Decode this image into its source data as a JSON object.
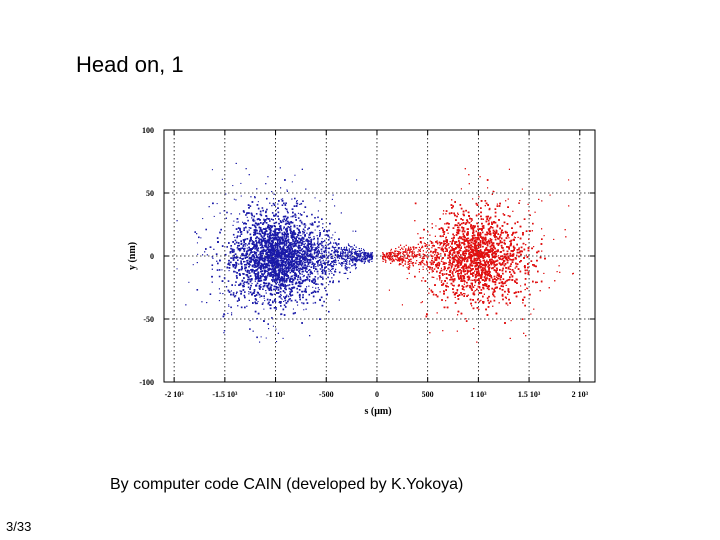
{
  "slide": {
    "title": "Head on, 1",
    "caption": "By computer code CAIN (developed by K.Yokoya)",
    "page_number": "3/33"
  },
  "chart_data": {
    "type": "scatter",
    "title": "",
    "xlabel": "s (μm)",
    "ylabel": "y (nm)",
    "xlim": [
      -2100,
      2150
    ],
    "ylim": [
      -100,
      100
    ],
    "x_ticks": [
      {
        "value": -2000,
        "label": "-2 10³"
      },
      {
        "value": -1500,
        "label": "-1.5 10³"
      },
      {
        "value": -1000,
        "label": "-1 10³"
      },
      {
        "value": -500,
        "label": "-500"
      },
      {
        "value": 0,
        "label": "0"
      },
      {
        "value": 500,
        "label": "500"
      },
      {
        "value": 1000,
        "label": "1 10³"
      },
      {
        "value": 1500,
        "label": "1.5 10³"
      },
      {
        "value": 2000,
        "label": "2 10³"
      }
    ],
    "y_ticks": [
      {
        "value": -100,
        "label": "-100"
      },
      {
        "value": -50,
        "label": "-50"
      },
      {
        "value": 0,
        "label": "0"
      },
      {
        "value": 50,
        "label": "50"
      },
      {
        "value": 100,
        "label": "100"
      }
    ],
    "grid": "dashed at major ticks",
    "series": [
      {
        "color": "#1a1aa8",
        "center_x": -1000,
        "center_y": 0,
        "tail_toward": "right",
        "extent_x": [
          -2000,
          -50
        ],
        "extent_y": [
          -70,
          75
        ]
      },
      {
        "color": "#e01010",
        "center_x": 1000,
        "center_y": 0,
        "tail_toward": "left",
        "extent_x": [
          0,
          2000
        ],
        "extent_y": [
          -70,
          70
        ]
      }
    ]
  }
}
